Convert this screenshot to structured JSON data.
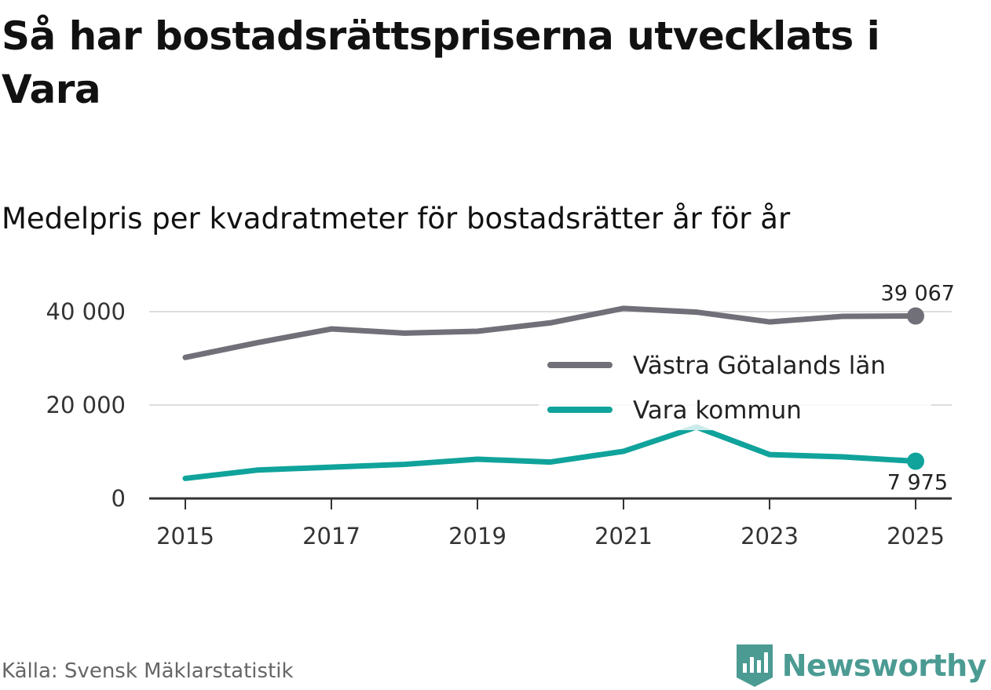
{
  "header": {
    "title": "Så har bostadsrättspriserna utvecklats i Vara",
    "subtitle": "Medelpris per kvadratmeter för bostadsrätter år för år"
  },
  "footer": {
    "source": "Källa: Svensk Mäklarstatistik",
    "brand": "Newsworthy"
  },
  "colors": {
    "series_region": "#717078",
    "series_kommun": "#10a39b",
    "highlight_kommun": "#c8eae7",
    "grid": "#dddddd",
    "axis": "#333333",
    "brand": "#4b9b93"
  },
  "chart_data": {
    "type": "line",
    "title": "Medelpris per kvadratmeter för bostadsrätter år för år",
    "xlabel": "",
    "ylabel": "",
    "x": [
      2015,
      2016,
      2017,
      2018,
      2019,
      2020,
      2021,
      2022,
      2023,
      2024,
      2025
    ],
    "x_ticks": [
      "2015",
      "2017",
      "2019",
      "2021",
      "2023",
      "2025"
    ],
    "ylim": [
      0,
      42000
    ],
    "y_ticks": [
      {
        "value": 0,
        "label": "0"
      },
      {
        "value": 20000,
        "label": "20 000"
      },
      {
        "value": 40000,
        "label": "40 000"
      }
    ],
    "grid": true,
    "legend_position": "right",
    "series": [
      {
        "name": "Västra Götalands län",
        "color": "#717078",
        "values": [
          30200,
          33400,
          36300,
          35400,
          35800,
          37600,
          40700,
          39900,
          37800,
          39000,
          39067
        ],
        "end_label": "39 067"
      },
      {
        "name": "Vara kommun",
        "color": "#10a39b",
        "values": [
          4300,
          6100,
          6700,
          7300,
          8400,
          7800,
          10100,
          15300,
          9400,
          8900,
          7975
        ],
        "end_label": "7 975"
      }
    ]
  }
}
